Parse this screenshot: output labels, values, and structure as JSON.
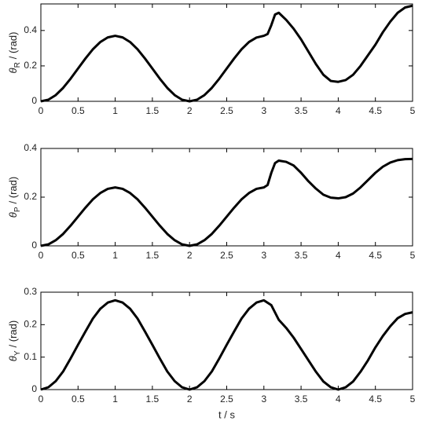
{
  "chart_data": [
    {
      "type": "line",
      "ylabel": {
        "symbol": "θ",
        "subscript": "R",
        "unit": "/ (rad)"
      },
      "x": [
        0,
        0.1,
        0.2,
        0.3,
        0.4,
        0.5,
        0.6,
        0.7,
        0.8,
        0.9,
        1.0,
        1.1,
        1.2,
        1.3,
        1.4,
        1.5,
        1.6,
        1.7,
        1.8,
        1.9,
        2.0,
        2.1,
        2.2,
        2.3,
        2.4,
        2.5,
        2.6,
        2.7,
        2.8,
        2.9,
        3.0,
        3.05,
        3.1,
        3.15,
        3.2,
        3.3,
        3.4,
        3.5,
        3.6,
        3.7,
        3.8,
        3.9,
        4.0,
        4.1,
        4.2,
        4.3,
        4.4,
        4.5,
        4.6,
        4.7,
        4.8,
        4.9,
        5.0
      ],
      "values": [
        0,
        0.009,
        0.035,
        0.076,
        0.128,
        0.185,
        0.242,
        0.294,
        0.335,
        0.361,
        0.37,
        0.361,
        0.335,
        0.294,
        0.242,
        0.185,
        0.128,
        0.076,
        0.035,
        0.009,
        0,
        0.009,
        0.035,
        0.076,
        0.128,
        0.185,
        0.242,
        0.294,
        0.335,
        0.36,
        0.37,
        0.38,
        0.43,
        0.49,
        0.5,
        0.46,
        0.41,
        0.35,
        0.28,
        0.21,
        0.15,
        0.115,
        0.11,
        0.12,
        0.15,
        0.2,
        0.26,
        0.32,
        0.39,
        0.45,
        0.5,
        0.53,
        0.54
      ],
      "color": "#000000",
      "xlim": [
        0,
        5
      ],
      "xticks": [
        0,
        0.5,
        1,
        1.5,
        2,
        2.5,
        3,
        3.5,
        4,
        4.5,
        5
      ],
      "ylim": [
        0,
        0.55
      ],
      "yticks": [
        0,
        0.2,
        0.4
      ]
    },
    {
      "type": "line",
      "ylabel": {
        "symbol": "θ",
        "subscript": "P",
        "unit": "/ (rad)"
      },
      "x": [
        0,
        0.1,
        0.2,
        0.3,
        0.4,
        0.5,
        0.6,
        0.7,
        0.8,
        0.9,
        1.0,
        1.1,
        1.2,
        1.3,
        1.4,
        1.5,
        1.6,
        1.7,
        1.8,
        1.9,
        2.0,
        2.1,
        2.2,
        2.3,
        2.4,
        2.5,
        2.6,
        2.7,
        2.8,
        2.9,
        3.0,
        3.05,
        3.1,
        3.15,
        3.2,
        3.3,
        3.4,
        3.5,
        3.6,
        3.7,
        3.8,
        3.9,
        4.0,
        4.1,
        4.2,
        4.3,
        4.4,
        4.5,
        4.6,
        4.7,
        4.8,
        4.9,
        5.0
      ],
      "values": [
        0,
        0.006,
        0.023,
        0.049,
        0.083,
        0.12,
        0.157,
        0.191,
        0.217,
        0.234,
        0.24,
        0.234,
        0.217,
        0.191,
        0.157,
        0.12,
        0.083,
        0.049,
        0.023,
        0.006,
        0,
        0.006,
        0.023,
        0.049,
        0.083,
        0.12,
        0.157,
        0.191,
        0.217,
        0.234,
        0.24,
        0.25,
        0.3,
        0.34,
        0.35,
        0.345,
        0.33,
        0.3,
        0.265,
        0.235,
        0.21,
        0.198,
        0.195,
        0.2,
        0.215,
        0.24,
        0.27,
        0.3,
        0.325,
        0.342,
        0.352,
        0.356,
        0.357
      ],
      "color": "#000000",
      "xlim": [
        0,
        5
      ],
      "xticks": [
        0,
        0.5,
        1,
        1.5,
        2,
        2.5,
        3,
        3.5,
        4,
        4.5,
        5
      ],
      "ylim": [
        0,
        0.4
      ],
      "yticks": [
        0,
        0.2,
        0.4
      ]
    },
    {
      "type": "line",
      "ylabel": {
        "symbol": "θ",
        "subscript": "Y",
        "unit": "/ (rad)"
      },
      "xlabel": "t / s",
      "x": [
        0,
        0.1,
        0.2,
        0.3,
        0.4,
        0.5,
        0.6,
        0.7,
        0.8,
        0.9,
        1.0,
        1.1,
        1.2,
        1.3,
        1.4,
        1.5,
        1.6,
        1.7,
        1.8,
        1.9,
        2.0,
        2.1,
        2.2,
        2.3,
        2.4,
        2.5,
        2.6,
        2.7,
        2.8,
        2.9,
        3.0,
        3.1,
        3.2,
        3.3,
        3.4,
        3.5,
        3.6,
        3.7,
        3.8,
        3.9,
        4.0,
        4.1,
        4.2,
        4.3,
        4.4,
        4.5,
        4.6,
        4.7,
        4.8,
        4.9,
        5.0
      ],
      "values": [
        0,
        0.007,
        0.026,
        0.056,
        0.096,
        0.138,
        0.179,
        0.219,
        0.249,
        0.268,
        0.275,
        0.268,
        0.249,
        0.219,
        0.179,
        0.138,
        0.096,
        0.056,
        0.026,
        0.007,
        0,
        0.007,
        0.026,
        0.056,
        0.096,
        0.138,
        0.179,
        0.219,
        0.249,
        0.268,
        0.275,
        0.26,
        0.215,
        0.19,
        0.16,
        0.125,
        0.09,
        0.055,
        0.025,
        0.007,
        0,
        0.007,
        0.025,
        0.055,
        0.09,
        0.13,
        0.165,
        0.195,
        0.22,
        0.233,
        0.238
      ],
      "color": "#000000",
      "xlim": [
        0,
        5
      ],
      "xticks": [
        0,
        0.5,
        1,
        1.5,
        2,
        2.5,
        3,
        3.5,
        4,
        4.5,
        5
      ],
      "ylim": [
        0,
        0.3
      ],
      "yticks": [
        0,
        0.1,
        0.2,
        0.3
      ]
    }
  ]
}
